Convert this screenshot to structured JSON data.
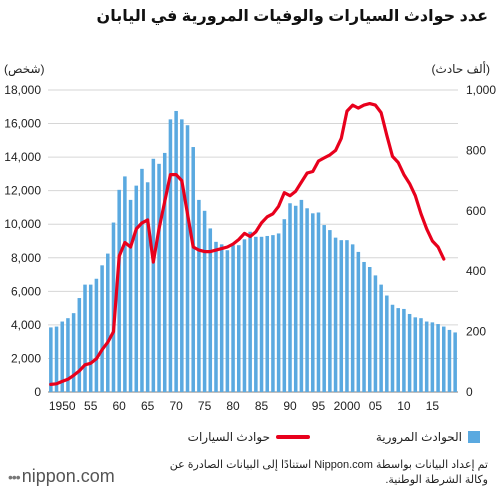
{
  "title": "عدد حوادث السيارات والوفيات المرورية في اليابان",
  "left_unit": "(شخص)",
  "right_unit": "(ألف حادث)",
  "legend": {
    "bars": "الحوادث المرورية",
    "line": "حوادث السيارات"
  },
  "source": "تم إعداد البيانات بواسطة Nippon.com استنادًا إلى البيانات الصادرة عن وكالة الشرطة الوطنية.",
  "brand": {
    "name": "nippon.com"
  },
  "colors": {
    "bars": "#5aa9e0",
    "line": "#e8001c",
    "grid": "#d6d6d6"
  },
  "chart_data": {
    "type": "bar",
    "x_start": 1948,
    "x_tick_labels": [
      "1950",
      "55",
      "60",
      "65",
      "70",
      "75",
      "80",
      "85",
      "90",
      "95",
      "2000",
      "05",
      "10",
      "15"
    ],
    "x_tick_years": [
      1950,
      1955,
      1960,
      1965,
      1970,
      1975,
      1980,
      1985,
      1990,
      1995,
      2000,
      2005,
      2010,
      2015
    ],
    "y_left": {
      "ticks": [
        0,
        2000,
        4000,
        6000,
        8000,
        10000,
        12000,
        14000,
        16000,
        18000
      ],
      "tick_labels": [
        "0",
        "2,000",
        "4,000",
        "6,000",
        "8,000",
        "10,000",
        "12,000",
        "14,000",
        "16,000",
        "18,000"
      ],
      "ylim": [
        0,
        18000
      ]
    },
    "y_right": {
      "ticks": [
        0,
        200,
        400,
        600,
        800,
        1000
      ],
      "tick_labels": [
        "0",
        "200",
        "400",
        "600",
        "800",
        "1,000"
      ],
      "ylim": [
        0,
        1000
      ]
    },
    "series": [
      {
        "name": "الحوادث المرورية",
        "kind": "bar",
        "axis": "left",
        "values": [
          3850,
          3900,
          4200,
          4400,
          4700,
          5600,
          6400,
          6400,
          6750,
          7550,
          8250,
          10100,
          12050,
          12850,
          11450,
          12300,
          13300,
          12500,
          13900,
          13600,
          14250,
          16250,
          16750,
          16250,
          15900,
          14600,
          11450,
          10800,
          9750,
          8950,
          8800,
          8450,
          8750,
          8750,
          9100,
          9550,
          9250,
          9250,
          9300,
          9350,
          9450,
          10300,
          11250,
          11100,
          11450,
          10950,
          10650,
          10700,
          9950,
          9650,
          9200,
          9050,
          9050,
          8800,
          8350,
          7750,
          7450,
          6950,
          6400,
          5750,
          5200,
          5000,
          4950,
          4650,
          4450,
          4400,
          4200,
          4150,
          4050,
          3900,
          3700,
          3550
        ],
        "grid": true
      },
      {
        "name": "حوادث السيارات",
        "kind": "line",
        "axis": "right",
        "values": [
          25,
          27,
          35,
          42,
          55,
          70,
          90,
          95,
          110,
          140,
          165,
          200,
          450,
          495,
          480,
          540,
          560,
          570,
          430,
          540,
          630,
          720,
          720,
          700,
          590,
          480,
          470,
          465,
          465,
          470,
          475,
          480,
          490,
          505,
          525,
          515,
          530,
          560,
          580,
          590,
          615,
          660,
          650,
          665,
          695,
          725,
          730,
          765,
          775,
          785,
          800,
          840,
          930,
          950,
          940,
          950,
          955,
          950,
          925,
          850,
          780,
          760,
          720,
          690,
          650,
          590,
          540,
          500,
          480,
          440
        ]
      }
    ]
  }
}
